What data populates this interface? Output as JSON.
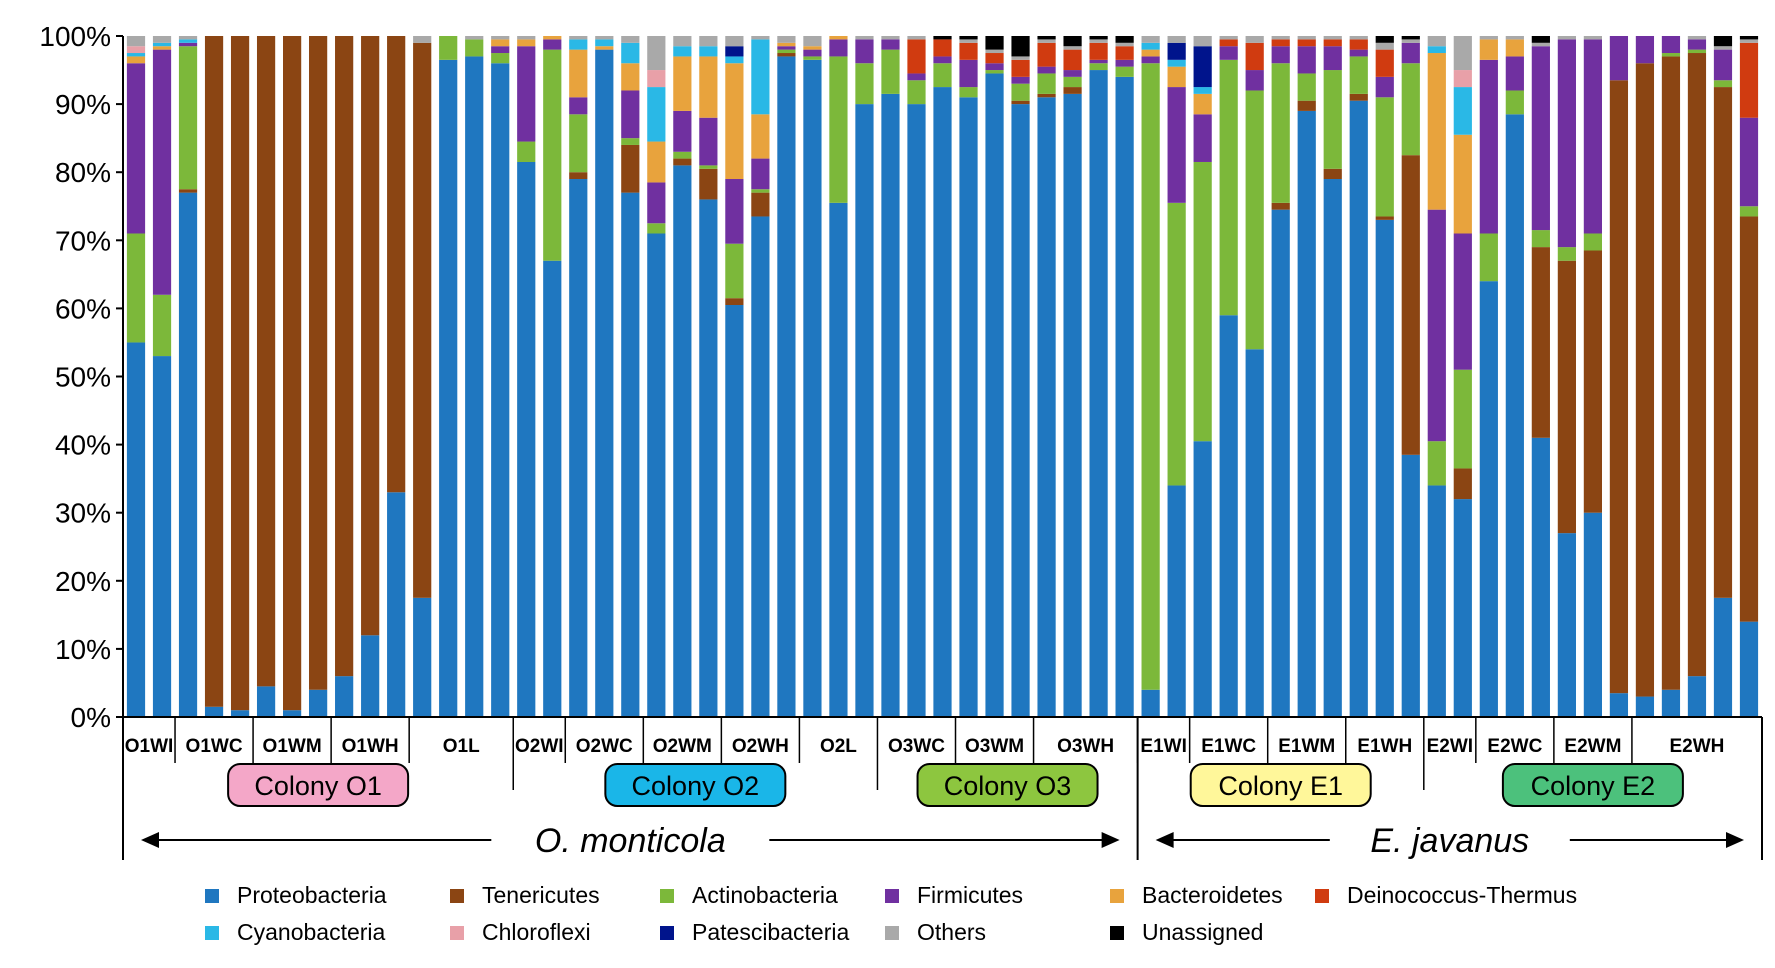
{
  "chart_data": {
    "type": "stacked-bar",
    "ylabel": "",
    "ylim": [
      0,
      100
    ],
    "y_ticks": [
      "0%",
      "10%",
      "20%",
      "30%",
      "40%",
      "50%",
      "60%",
      "70%",
      "80%",
      "90%",
      "100%"
    ],
    "series_colors": {
      "Proteobacteria": "#1f77c0",
      "Tenericutes": "#8b4513",
      "Actinobacteria": "#7cb83a",
      "Firmicutes": "#7030a0",
      "Bacteroidetes": "#e8a33d",
      "Deinococcus-Thermus": "#d03b10",
      "Cyanobacteria": "#2ab8e6",
      "Chloroflexi": "#e8a0a8",
      "Patescibacteria": "#00148c",
      "Others": "#a9a9a9",
      "Unassigned": "#000000"
    },
    "legend": [
      [
        "Proteobacteria",
        "Tenericutes",
        "Actinobacteria",
        "Firmicutes",
        "Bacteroidetes",
        "Deinococcus-Thermus"
      ],
      [
        "Cyanobacteria",
        "Chloroflexi",
        "Patescibacteria",
        "Others",
        "Unassigned"
      ]
    ],
    "groups": [
      {
        "label": "O1WI",
        "bars": [
          {
            "Proteobacteria": 55,
            "Actinobacteria": 16,
            "Firmicutes": 25,
            "Bacteroidetes": 1,
            "Cyanobacteria": 0.5,
            "Chloroflexi": 1,
            "Others": 1.5
          },
          {
            "Proteobacteria": 53,
            "Actinobacteria": 9,
            "Firmicutes": 36,
            "Bacteroidetes": 0.5,
            "Cyanobacteria": 0.5,
            "Others": 1
          }
        ]
      },
      {
        "label": "O1WC",
        "bars": [
          {
            "Proteobacteria": 77,
            "Tenericutes": 0.5,
            "Actinobacteria": 21,
            "Firmicutes": 0.5,
            "Cyanobacteria": 0.5,
            "Others": 0.5
          },
          {
            "Proteobacteria": 1.5,
            "Tenericutes": 98.5
          },
          {
            "Proteobacteria": 1,
            "Tenericutes": 99
          }
        ]
      },
      {
        "label": "O1WM",
        "bars": [
          {
            "Proteobacteria": 4.5,
            "Tenericutes": 95.5
          },
          {
            "Proteobacteria": 1,
            "Tenericutes": 99
          },
          {
            "Proteobacteria": 4,
            "Tenericutes": 96
          }
        ]
      },
      {
        "label": "O1WH",
        "bars": [
          {
            "Proteobacteria": 6,
            "Tenericutes": 94
          },
          {
            "Proteobacteria": 12,
            "Tenericutes": 88
          },
          {
            "Proteobacteria": 33,
            "Tenericutes": 67
          }
        ]
      },
      {
        "label": "O1L",
        "bars": [
          {
            "Proteobacteria": 17.5,
            "Tenericutes": 81.5,
            "Others": 1
          },
          {
            "Proteobacteria": 96.5,
            "Actinobacteria": 3.5
          },
          {
            "Proteobacteria": 97,
            "Actinobacteria": 2.5,
            "Others": 0.5
          },
          {
            "Proteobacteria": 96,
            "Actinobacteria": 1.5,
            "Firmicutes": 1,
            "Bacteroidetes": 1,
            "Others": 0.5
          }
        ]
      },
      {
        "label": "O2WI",
        "bars": [
          {
            "Proteobacteria": 81.5,
            "Actinobacteria": 3,
            "Firmicutes": 14,
            "Bacteroidetes": 1,
            "Others": 0.5
          },
          {
            "Proteobacteria": 67,
            "Actinobacteria": 31,
            "Firmicutes": 1.5,
            "Bacteroidetes": 0.5
          }
        ]
      },
      {
        "label": "O2WC",
        "bars": [
          {
            "Proteobacteria": 79,
            "Tenericutes": 1,
            "Actinobacteria": 8.5,
            "Firmicutes": 2.5,
            "Bacteroidetes": 7,
            "Cyanobacteria": 1.5,
            "Others": 0.5
          },
          {
            "Proteobacteria": 98,
            "Bacteroidetes": 0.5,
            "Cyanobacteria": 1,
            "Others": 0.5
          },
          {
            "Proteobacteria": 77,
            "Tenericutes": 7,
            "Actinobacteria": 1,
            "Firmicutes": 7,
            "Bacteroidetes": 4,
            "Cyanobacteria": 3,
            "Others": 1
          }
        ]
      },
      {
        "label": "O2WM",
        "bars": [
          {
            "Proteobacteria": 71,
            "Actinobacteria": 1.5,
            "Firmicutes": 6,
            "Bacteroidetes": 6,
            "Cyanobacteria": 8,
            "Chloroflexi": 2.5,
            "Others": 5
          },
          {
            "Proteobacteria": 81,
            "Tenericutes": 1,
            "Actinobacteria": 1,
            "Firmicutes": 6,
            "Bacteroidetes": 8,
            "Cyanobacteria": 1.5,
            "Others": 1.5
          },
          {
            "Proteobacteria": 76,
            "Tenericutes": 4.5,
            "Actinobacteria": 0.5,
            "Firmicutes": 7,
            "Bacteroidetes": 9,
            "Cyanobacteria": 1.5,
            "Others": 1.5
          }
        ]
      },
      {
        "label": "O2WH",
        "bars": [
          {
            "Proteobacteria": 60.5,
            "Tenericutes": 1,
            "Actinobacteria": 8,
            "Firmicutes": 9.5,
            "Bacteroidetes": 17,
            "Cyanobacteria": 1,
            "Patescibacteria": 1.5,
            "Others": 1.5
          },
          {
            "Proteobacteria": 73.5,
            "Tenericutes": 3.5,
            "Actinobacteria": 0.5,
            "Firmicutes": 4.5,
            "Bacteroidetes": 6.5,
            "Cyanobacteria": 11,
            "Others": 0.5
          },
          {
            "Proteobacteria": 97,
            "Tenericutes": 0.5,
            "Actinobacteria": 0.5,
            "Firmicutes": 0.5,
            "Bacteroidetes": 0.5,
            "Others": 1
          }
        ]
      },
      {
        "label": "O2L",
        "bars": [
          {
            "Proteobacteria": 96.5,
            "Actinobacteria": 0.5,
            "Firmicutes": 1,
            "Bacteroidetes": 0.5,
            "Others": 1.5
          },
          {
            "Proteobacteria": 75.5,
            "Actinobacteria": 21.5,
            "Firmicutes": 2.5,
            "Bacteroidetes": 0.5
          },
          {
            "Proteobacteria": 90,
            "Actinobacteria": 6,
            "Firmicutes": 3.5,
            "Others": 0.5
          }
        ]
      },
      {
        "label": "O3WC",
        "bars": [
          {
            "Proteobacteria": 91.5,
            "Actinobacteria": 6.5,
            "Firmicutes": 1.5,
            "Others": 0.5
          },
          {
            "Proteobacteria": 90,
            "Actinobacteria": 3.5,
            "Firmicutes": 1,
            "Deinococcus-Thermus": 5,
            "Others": 0.5
          },
          {
            "Proteobacteria": 92.5,
            "Actinobacteria": 3.5,
            "Firmicutes": 1,
            "Deinococcus-Thermus": 2.5,
            "Unassigned": 0.5
          }
        ]
      },
      {
        "label": "O3WM",
        "bars": [
          {
            "Proteobacteria": 91,
            "Actinobacteria": 1.5,
            "Firmicutes": 4,
            "Deinococcus-Thermus": 2.5,
            "Others": 0.5,
            "Unassigned": 0.5
          },
          {
            "Proteobacteria": 94.5,
            "Actinobacteria": 0.5,
            "Firmicutes": 1,
            "Deinococcus-Thermus": 1.5,
            "Others": 0.5,
            "Unassigned": 2
          },
          {
            "Proteobacteria": 90,
            "Tenericutes": 0.5,
            "Actinobacteria": 2.5,
            "Firmicutes": 1,
            "Deinococcus-Thermus": 2.5,
            "Others": 0.5,
            "Unassigned": 3
          }
        ]
      },
      {
        "label": "O3WH",
        "bars": [
          {
            "Proteobacteria": 91,
            "Tenericutes": 0.5,
            "Actinobacteria": 3,
            "Firmicutes": 1,
            "Deinococcus-Thermus": 3.5,
            "Others": 0.5,
            "Unassigned": 0.5
          },
          {
            "Proteobacteria": 91.5,
            "Tenericutes": 1,
            "Actinobacteria": 1.5,
            "Firmicutes": 1,
            "Deinococcus-Thermus": 3,
            "Others": 0.5,
            "Unassigned": 1.5
          },
          {
            "Proteobacteria": 95,
            "Actinobacteria": 1,
            "Firmicutes": 0.5,
            "Deinococcus-Thermus": 2.5,
            "Others": 0.5,
            "Unassigned": 0.5
          },
          {
            "Proteobacteria": 94,
            "Actinobacteria": 1.5,
            "Firmicutes": 1,
            "Deinococcus-Thermus": 2,
            "Others": 0.5,
            "Unassigned": 1
          }
        ]
      },
      {
        "label": "E1WI",
        "bars": [
          {
            "Proteobacteria": 4,
            "Actinobacteria": 92,
            "Firmicutes": 1,
            "Bacteroidetes": 1,
            "Cyanobacteria": 1,
            "Others": 1
          },
          {
            "Proteobacteria": 34,
            "Actinobacteria": 41.5,
            "Firmicutes": 17,
            "Bacteroidetes": 3,
            "Cyanobacteria": 1,
            "Patescibacteria": 2.5,
            "Others": 1
          }
        ]
      },
      {
        "label": "E1WC",
        "bars": [
          {
            "Proteobacteria": 40.5,
            "Actinobacteria": 41,
            "Firmicutes": 7,
            "Bacteroidetes": 3,
            "Cyanobacteria": 1,
            "Patescibacteria": 6,
            "Others": 1.5
          },
          {
            "Proteobacteria": 59,
            "Actinobacteria": 37.5,
            "Firmicutes": 2,
            "Deinococcus-Thermus": 1,
            "Others": 0.5
          },
          {
            "Proteobacteria": 54,
            "Actinobacteria": 38,
            "Firmicutes": 3,
            "Deinococcus-Thermus": 4,
            "Others": 1
          }
        ]
      },
      {
        "label": "E1WM",
        "bars": [
          {
            "Proteobacteria": 74.5,
            "Tenericutes": 1,
            "Actinobacteria": 20.5,
            "Firmicutes": 2.5,
            "Deinococcus-Thermus": 1,
            "Others": 0.5
          },
          {
            "Proteobacteria": 89,
            "Tenericutes": 1.5,
            "Actinobacteria": 4,
            "Firmicutes": 4,
            "Deinococcus-Thermus": 1,
            "Others": 0.5
          },
          {
            "Proteobacteria": 79,
            "Tenericutes": 1.5,
            "Actinobacteria": 14.5,
            "Firmicutes": 3.5,
            "Deinococcus-Thermus": 1,
            "Others": 0.5
          }
        ]
      },
      {
        "label": "E1WH",
        "bars": [
          {
            "Proteobacteria": 90.5,
            "Tenericutes": 1,
            "Actinobacteria": 5.5,
            "Firmicutes": 1,
            "Deinococcus-Thermus": 1.5,
            "Others": 0.5
          },
          {
            "Proteobacteria": 73,
            "Tenericutes": 0.5,
            "Actinobacteria": 17.5,
            "Firmicutes": 3,
            "Deinococcus-Thermus": 4,
            "Others": 1,
            "Unassigned": 1
          },
          {
            "Proteobacteria": 38.5,
            "Tenericutes": 44,
            "Actinobacteria": 13.5,
            "Firmicutes": 3,
            "Others": 0.5,
            "Unassigned": 0.5
          }
        ]
      },
      {
        "label": "E2WI",
        "bars": [
          {
            "Proteobacteria": 34,
            "Actinobacteria": 6.5,
            "Firmicutes": 34,
            "Bacteroidetes": 23,
            "Cyanobacteria": 1,
            "Others": 1.5
          },
          {
            "Proteobacteria": 32,
            "Tenericutes": 4.5,
            "Actinobacteria": 14.5,
            "Firmicutes": 20,
            "Bacteroidetes": 14.5,
            "Cyanobacteria": 7,
            "Chloroflexi": 2.5,
            "Others": 5
          }
        ]
      },
      {
        "label": "E2WC",
        "bars": [
          {
            "Proteobacteria": 64,
            "Actinobacteria": 7,
            "Firmicutes": 25.5,
            "Bacteroidetes": 3,
            "Others": 0.5
          },
          {
            "Proteobacteria": 88.5,
            "Actinobacteria": 3.5,
            "Firmicutes": 5,
            "Bacteroidetes": 2.5,
            "Others": 0.5
          },
          {
            "Proteobacteria": 41,
            "Tenericutes": 28,
            "Actinobacteria": 2.5,
            "Firmicutes": 27,
            "Others": 0.5,
            "Unassigned": 1
          }
        ]
      },
      {
        "label": "E2WM",
        "bars": [
          {
            "Proteobacteria": 27,
            "Tenericutes": 40,
            "Actinobacteria": 2,
            "Firmicutes": 30.5,
            "Others": 0.5
          },
          {
            "Proteobacteria": 30,
            "Tenericutes": 38.5,
            "Actinobacteria": 2.5,
            "Firmicutes": 28.5,
            "Others": 0.5
          },
          {
            "Proteobacteria": 3.5,
            "Tenericutes": 90,
            "Firmicutes": 6.5
          }
        ]
      },
      {
        "label": "E2WH",
        "bars": [
          {
            "Proteobacteria": 3,
            "Tenericutes": 93,
            "Firmicutes": 4
          },
          {
            "Proteobacteria": 4,
            "Tenericutes": 93,
            "Actinobacteria": 0.5,
            "Firmicutes": 2.5
          },
          {
            "Proteobacteria": 6,
            "Tenericutes": 91.5,
            "Actinobacteria": 0.5,
            "Firmicutes": 1.5,
            "Others": 0.5
          },
          {
            "Proteobacteria": 17.5,
            "Tenericutes": 75,
            "Actinobacteria": 1,
            "Firmicutes": 4.5,
            "Others": 0.5,
            "Unassigned": 1.5
          },
          {
            "Proteobacteria": 14,
            "Tenericutes": 59.5,
            "Actinobacteria": 1.5,
            "Firmicutes": 13,
            "Deinococcus-Thermus": 11,
            "Others": 0.5,
            "Unassigned": 0.5
          }
        ]
      }
    ],
    "colonies": [
      {
        "label": "Colony O1",
        "color": "#f4a7c8",
        "from": 0,
        "to": 4
      },
      {
        "label": "Colony O2",
        "color": "#1ab6e8",
        "from": 5,
        "to": 9
      },
      {
        "label": "Colony O3",
        "color": "#8dc63f",
        "from": 10,
        "to": 12
      },
      {
        "label": "Colony E1",
        "color": "#fff79a",
        "from": 13,
        "to": 16
      },
      {
        "label": "Colony E2",
        "color": "#4cc17c",
        "from": 17,
        "to": 20
      }
    ],
    "species": [
      {
        "label": "O. monticola",
        "from": 0,
        "to": 12
      },
      {
        "label": "E. javanus",
        "from": 13,
        "to": 20
      }
    ]
  }
}
